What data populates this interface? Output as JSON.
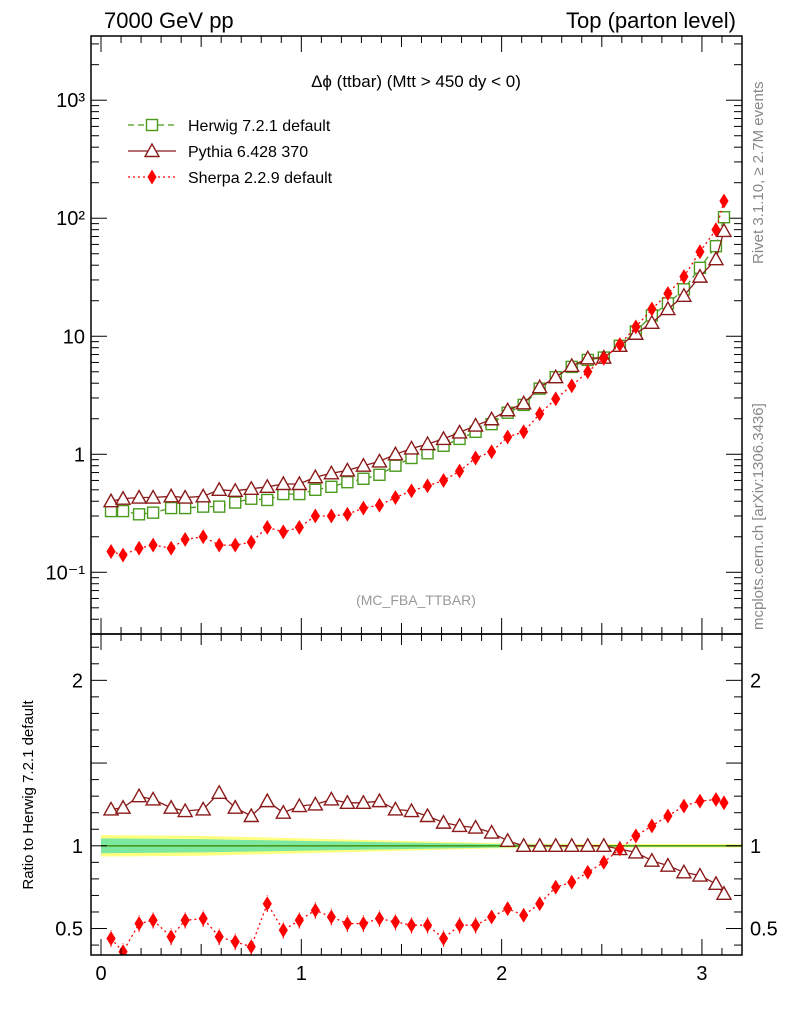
{
  "header": {
    "left": "7000 GeV pp",
    "right": "Top (parton level)"
  },
  "side_labels": {
    "rivet": "Rivet 3.1.10, ≥ 2.7M events",
    "mcplots": "mcplots.cern.ch [arXiv:1306.3436]"
  },
  "watermark": "(MC_FBA_TTBAR)",
  "colors": {
    "herwig": "#4a9a1e",
    "pythia": "#8b1a1a",
    "sherpa": "#ff0000",
    "band_inner": "#7de8a0",
    "band_outer": "#ffff80"
  },
  "chart_data": [
    {
      "type": "line",
      "title": "Δϕ (ttbar) (Mtt > 450 dy < 0)",
      "xlabel": "",
      "ylabel": "",
      "yscale": "log",
      "xlim": [
        -0.05,
        3.2
      ],
      "ylim": [
        0.03,
        3500
      ],
      "y_ticks": [
        {
          "value": 0.1,
          "label": "10⁻¹"
        },
        {
          "value": 1,
          "label": "1"
        },
        {
          "value": 10,
          "label": "10"
        },
        {
          "value": 100,
          "label": "10²"
        },
        {
          "value": 1000,
          "label": "10³"
        }
      ],
      "legend_position": "top-left",
      "x": [
        0.05,
        0.11,
        0.19,
        0.26,
        0.35,
        0.42,
        0.51,
        0.59,
        0.67,
        0.75,
        0.83,
        0.91,
        0.99,
        1.07,
        1.15,
        1.23,
        1.31,
        1.39,
        1.47,
        1.55,
        1.63,
        1.71,
        1.79,
        1.87,
        1.95,
        2.03,
        2.11,
        2.19,
        2.27,
        2.35,
        2.43,
        2.51,
        2.59,
        2.67,
        2.75,
        2.83,
        2.91,
        2.99,
        3.07,
        3.11
      ],
      "series": [
        {
          "name": "Herwig 7.2.1 default",
          "marker": "open-square",
          "line": "dashed",
          "values": [
            0.33,
            0.33,
            0.31,
            0.32,
            0.35,
            0.35,
            0.36,
            0.36,
            0.39,
            0.42,
            0.41,
            0.46,
            0.46,
            0.5,
            0.53,
            0.58,
            0.62,
            0.67,
            0.8,
            0.93,
            1.02,
            1.18,
            1.35,
            1.55,
            1.8,
            2.25,
            2.62,
            3.6,
            4.5,
            5.5,
            6.3,
            6.6,
            8.3,
            11,
            15,
            19,
            25,
            38,
            58,
            102
          ]
        },
        {
          "name": "Pythia 6.428 370",
          "marker": "open-triangle",
          "line": "solid",
          "values": [
            0.4,
            0.42,
            0.43,
            0.43,
            0.44,
            0.43,
            0.44,
            0.5,
            0.49,
            0.51,
            0.53,
            0.56,
            0.56,
            0.64,
            0.69,
            0.73,
            0.8,
            0.87,
            1.0,
            1.12,
            1.22,
            1.35,
            1.53,
            1.75,
            1.98,
            2.36,
            2.7,
            3.7,
            4.5,
            5.6,
            6.5,
            6.6,
            8.3,
            10.5,
            13,
            17,
            22,
            32,
            45,
            78
          ]
        },
        {
          "name": "Sherpa 2.2.9 default",
          "marker": "filled-diamond",
          "line": "dotted",
          "values": [
            0.15,
            0.14,
            0.16,
            0.17,
            0.16,
            0.19,
            0.2,
            0.17,
            0.17,
            0.18,
            0.24,
            0.22,
            0.24,
            0.3,
            0.3,
            0.31,
            0.35,
            0.37,
            0.43,
            0.49,
            0.54,
            0.6,
            0.72,
            0.93,
            1.05,
            1.4,
            1.55,
            2.2,
            2.95,
            3.8,
            5.0,
            6.5,
            8.5,
            12,
            17,
            23,
            32,
            52,
            80,
            140
          ]
        }
      ]
    },
    {
      "type": "line",
      "title": "",
      "xlabel": "",
      "ylabel": "Ratio to Herwig 7.2.1 default",
      "xlim": [
        -0.05,
        3.2
      ],
      "ylim": [
        0.34,
        2.28
      ],
      "x_ticks": [
        0,
        1,
        2,
        3
      ],
      "y_ticks": [
        0.5,
        1,
        2
      ],
      "reference_line": 1,
      "band": {
        "x": [
          0.0,
          0.5,
          1.0,
          1.5,
          2.0,
          2.5,
          3.2
        ],
        "inner": [
          0.045,
          0.04,
          0.03,
          0.02,
          0.01,
          0.005,
          0.005
        ],
        "outer": [
          0.065,
          0.06,
          0.045,
          0.03,
          0.015,
          0.01,
          0.01
        ]
      },
      "x": [
        0.05,
        0.11,
        0.19,
        0.26,
        0.35,
        0.42,
        0.51,
        0.59,
        0.67,
        0.75,
        0.83,
        0.91,
        0.99,
        1.07,
        1.15,
        1.23,
        1.31,
        1.39,
        1.47,
        1.55,
        1.63,
        1.71,
        1.79,
        1.87,
        1.95,
        2.03,
        2.11,
        2.19,
        2.27,
        2.35,
        2.43,
        2.51,
        2.59,
        2.67,
        2.75,
        2.83,
        2.91,
        2.99,
        3.07,
        3.11
      ],
      "series": [
        {
          "name": "Pythia 6.428 370",
          "marker": "open-triangle",
          "line": "solid",
          "values": [
            1.22,
            1.23,
            1.3,
            1.28,
            1.23,
            1.21,
            1.22,
            1.32,
            1.23,
            1.18,
            1.27,
            1.2,
            1.24,
            1.25,
            1.28,
            1.26,
            1.26,
            1.27,
            1.22,
            1.21,
            1.18,
            1.14,
            1.12,
            1.11,
            1.08,
            1.03,
            1.0,
            1.0,
            1.0,
            1.0,
            1.0,
            1.0,
            0.98,
            0.96,
            0.91,
            0.88,
            0.84,
            0.82,
            0.77,
            0.71
          ]
        },
        {
          "name": "Sherpa 2.2.9 default",
          "marker": "filled-diamond",
          "line": "dotted",
          "values": [
            0.44,
            0.36,
            0.53,
            0.55,
            0.45,
            0.55,
            0.56,
            0.45,
            0.42,
            0.39,
            0.65,
            0.49,
            0.55,
            0.61,
            0.57,
            0.53,
            0.53,
            0.56,
            0.54,
            0.52,
            0.52,
            0.44,
            0.52,
            0.52,
            0.57,
            0.62,
            0.58,
            0.65,
            0.75,
            0.78,
            0.84,
            0.9,
            0.98,
            1.06,
            1.12,
            1.18,
            1.24,
            1.27,
            1.28,
            1.26
          ]
        }
      ]
    }
  ]
}
